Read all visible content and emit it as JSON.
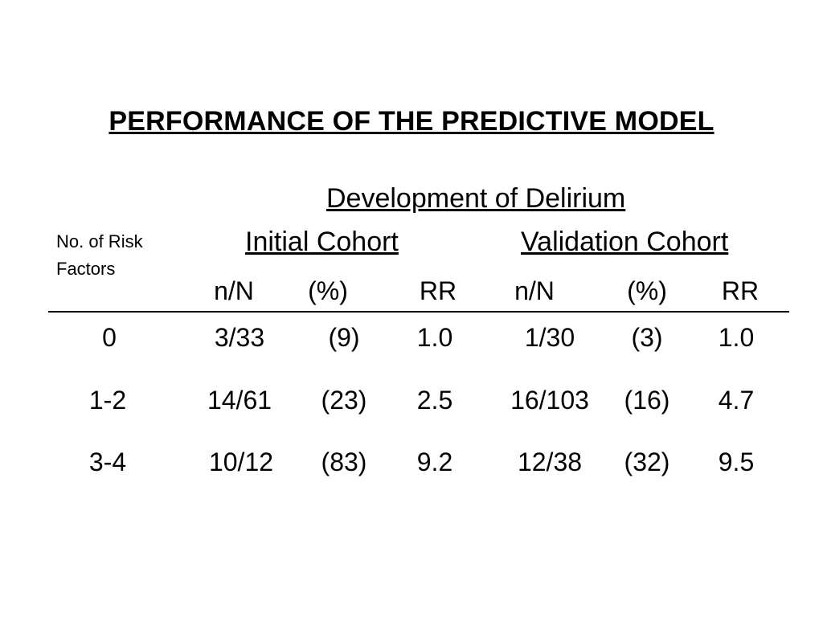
{
  "title": "PERFORMANCE OF THE PREDICTIVE MODEL",
  "table": {
    "super_header": "Development of Delirium",
    "row_header_label": "No. of Risk Factors",
    "cohorts": [
      "Initial Cohort",
      "Validation Cohort"
    ],
    "column_headers": [
      "n/N",
      "(%)",
      "RR",
      "n/N",
      "(%)",
      "RR"
    ],
    "rows": [
      {
        "factors": "0",
        "cells": [
          "3/33",
          "(9)",
          "1.0",
          "1/30",
          "(3)",
          "1.0"
        ]
      },
      {
        "factors": "1-2",
        "cells": [
          "14/61",
          "(23)",
          "2.5",
          "16/103",
          "(16)",
          "4.7"
        ]
      },
      {
        "factors": "3-4",
        "cells": [
          "10/12",
          "(83)",
          "9.2",
          "12/38",
          "(32)",
          "9.5"
        ]
      }
    ]
  }
}
